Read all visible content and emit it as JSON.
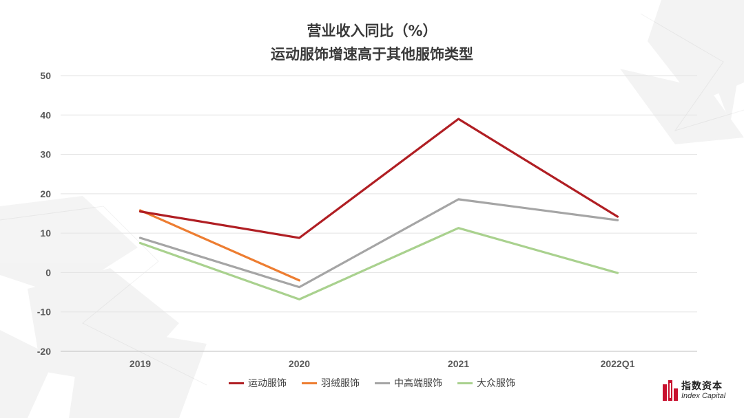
{
  "title": {
    "line1": "营业收入同比（%）",
    "line2": "运动服饰增速高于其他服饰类型"
  },
  "chart_data": {
    "type": "line",
    "categories": [
      "2019",
      "2020",
      "2021",
      "2022Q1"
    ],
    "ylim": [
      -20,
      50
    ],
    "yticks": [
      50,
      40,
      30,
      20,
      10,
      0,
      -10,
      -20
    ],
    "grid": true,
    "legend_position": "bottom",
    "series": [
      {
        "name": "运动服饰",
        "color": "#b01e23",
        "values": [
          15.5,
          8.8,
          39.0,
          14.2
        ]
      },
      {
        "name": "羽绒服饰",
        "color": "#ed7d31",
        "values": [
          15.8,
          -2.0,
          null,
          null
        ]
      },
      {
        "name": "中高端服饰",
        "color": "#a5a5a5",
        "values": [
          8.8,
          -3.7,
          18.6,
          13.3
        ]
      },
      {
        "name": "大众服饰",
        "color": "#a9d18e",
        "values": [
          7.5,
          -6.8,
          11.3,
          -0.1
        ]
      }
    ]
  },
  "logo": {
    "cn": "指数资本",
    "en": "Index Capital",
    "color": "#c8102e"
  }
}
